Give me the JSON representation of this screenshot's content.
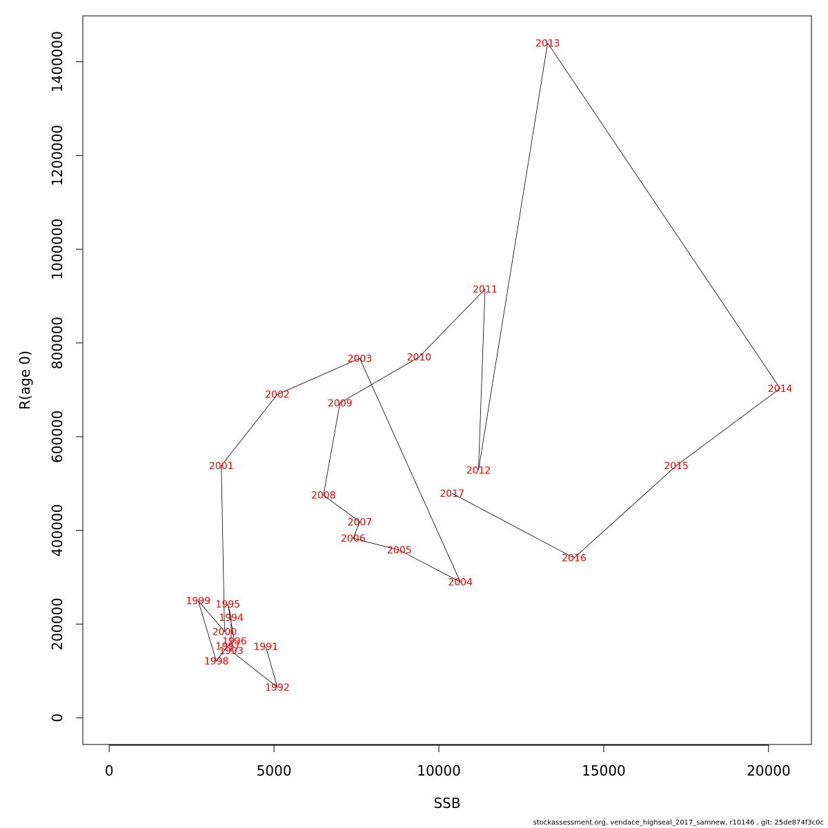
{
  "chart_data": {
    "type": "scatter",
    "xlabel": "SSB",
    "ylabel": "R(age 0)",
    "xlim": [
      -800,
      21300
    ],
    "ylim": [
      -57000,
      1498000
    ],
    "x_ticks": [
      0,
      5000,
      10000,
      15000,
      20000
    ],
    "y_ticks": [
      0,
      200000,
      400000,
      600000,
      800000,
      1000000,
      1200000,
      1400000
    ],
    "x_tick_labels": [
      "0",
      "5000",
      "10000",
      "15000",
      "20000"
    ],
    "y_tick_labels": [
      "0",
      "200000",
      "400000",
      "600000",
      "800000",
      "1000000",
      "1200000",
      "1400000"
    ],
    "grid": false,
    "line_color": "#000000",
    "label_color": "#ff0000",
    "points": [
      {
        "year": "1991",
        "x": 4750,
        "y": 152000
      },
      {
        "year": "1992",
        "x": 5100,
        "y": 65000
      },
      {
        "year": "1993",
        "x": 3700,
        "y": 143000
      },
      {
        "year": "1994",
        "x": 3700,
        "y": 214000
      },
      {
        "year": "1995",
        "x": 3600,
        "y": 243000
      },
      {
        "year": "1996",
        "x": 3800,
        "y": 164000
      },
      {
        "year": "1997",
        "x": 3600,
        "y": 153000
      },
      {
        "year": "1998",
        "x": 3250,
        "y": 121000
      },
      {
        "year": "1999",
        "x": 2700,
        "y": 250000
      },
      {
        "year": "2000",
        "x": 3500,
        "y": 184000
      },
      {
        "year": "2001",
        "x": 3400,
        "y": 538000
      },
      {
        "year": "2002",
        "x": 5100,
        "y": 690000
      },
      {
        "year": "2003",
        "x": 7600,
        "y": 767000
      },
      {
        "year": "2004",
        "x": 10650,
        "y": 290000
      },
      {
        "year": "2005",
        "x": 8800,
        "y": 358000
      },
      {
        "year": "2006",
        "x": 7400,
        "y": 383000
      },
      {
        "year": "2007",
        "x": 7600,
        "y": 418000
      },
      {
        "year": "2008",
        "x": 6500,
        "y": 475000
      },
      {
        "year": "2009",
        "x": 7000,
        "y": 672000
      },
      {
        "year": "2010",
        "x": 9400,
        "y": 770000
      },
      {
        "year": "2011",
        "x": 11400,
        "y": 915000
      },
      {
        "year": "2012",
        "x": 11200,
        "y": 528000
      },
      {
        "year": "2013",
        "x": 13300,
        "y": 1440000
      },
      {
        "year": "2014",
        "x": 20350,
        "y": 703000
      },
      {
        "year": "2015",
        "x": 17200,
        "y": 538000
      },
      {
        "year": "2016",
        "x": 14100,
        "y": 341000
      },
      {
        "year": "2017",
        "x": 10400,
        "y": 479000
      }
    ]
  },
  "footer": {
    "text": "stockassessment.org, vendace_highseal_2017_samnew, r10146 , git: 25de874f3c0c"
  }
}
